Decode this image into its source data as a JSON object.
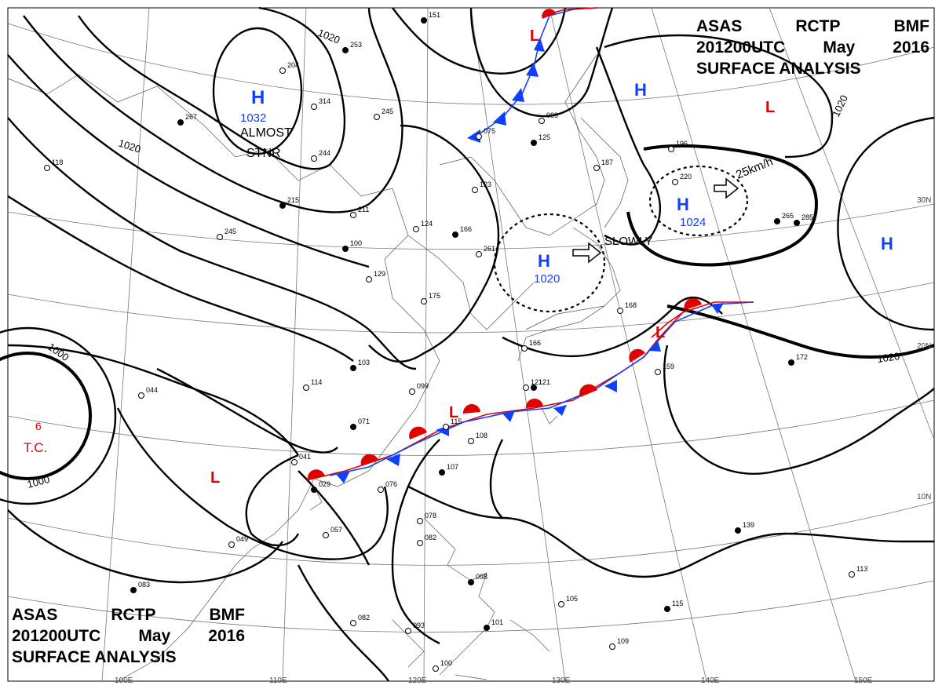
{
  "header": {
    "line1": [
      "ASAS",
      "RCTP",
      "BMF"
    ],
    "line2": [
      "201200UTC",
      "May",
      "2016"
    ],
    "line3": "SURFACE ANALYSIS"
  },
  "isobar_labels": [
    "1020",
    "1020",
    "1020",
    "1020",
    "1000",
    "1000",
    "1020"
  ],
  "pressure_centers": [
    {
      "type": "H",
      "value": "1032",
      "color": "#1040ff"
    },
    {
      "type": "H",
      "value": "1020",
      "color": "#1040ff"
    },
    {
      "type": "H",
      "value": "1024",
      "color": "#1040ff"
    },
    {
      "type": "H",
      "value": "",
      "color": "#1040ff"
    },
    {
      "type": "H",
      "value": "",
      "color": "#1040ff"
    },
    {
      "type": "L",
      "value": "",
      "color": "#e00000"
    },
    {
      "type": "L",
      "value": "",
      "color": "#e00000"
    },
    {
      "type": "L",
      "value": "",
      "color": "#e00000"
    },
    {
      "type": "L",
      "value": "",
      "color": "#e00000"
    },
    {
      "type": "L",
      "value": "",
      "color": "#e00000"
    }
  ],
  "annotations": {
    "almost": "ALMOST",
    "stnr": "STNR",
    "slowly": "SLOWLY",
    "speed": "25km/h",
    "tc": "T.C."
  },
  "grid_labels": {
    "lat": [
      "30N",
      "20N",
      "10N"
    ],
    "lon": [
      "100E",
      "110E",
      "120E",
      "130E",
      "140E",
      "150E"
    ]
  },
  "colors": {
    "warm_front": "#e00000",
    "cold_front": "#1040ff",
    "high": "#1040ff",
    "low": "#e00000",
    "isobar": "#000000"
  },
  "station_plots": [
    "253",
    "204",
    "314",
    "267",
    "245",
    "244",
    "215",
    "211",
    "245",
    "100",
    "129",
    "124",
    "166",
    "261",
    "123",
    "151",
    "075",
    "089",
    "125",
    "220",
    "196",
    "265",
    "168",
    "159",
    "172",
    "121",
    "099",
    "103",
    "114",
    "044",
    "071",
    "115",
    "108",
    "107",
    "076",
    "041",
    "029",
    "057",
    "049",
    "083",
    "078",
    "082",
    "098",
    "082",
    "093",
    "101",
    "100",
    "105",
    "115",
    "109",
    "113",
    "139",
    "175",
    "166",
    "121",
    "187",
    "118",
    "285"
  ]
}
